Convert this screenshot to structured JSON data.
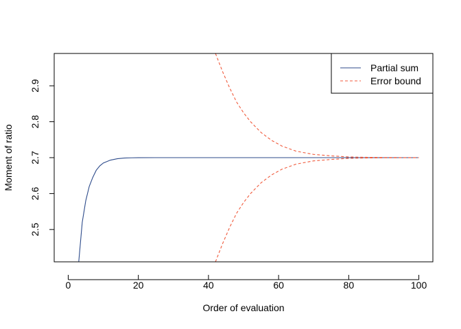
{
  "chart_data": {
    "type": "line",
    "title": "",
    "xlabel": "Order of evaluation",
    "ylabel": "Moment of ratio",
    "xlim": [
      -4,
      104
    ],
    "ylim": [
      2.41,
      2.99
    ],
    "x_ticks": [
      0,
      20,
      40,
      60,
      80,
      100
    ],
    "y_ticks": [
      2.5,
      2.6,
      2.7,
      2.8,
      2.9
    ],
    "x_tick_labels": [
      "0",
      "20",
      "40",
      "60",
      "80",
      "100"
    ],
    "y_tick_labels": [
      "2.5",
      "2.6",
      "2.7",
      "2.8",
      "2.9"
    ],
    "grid": false,
    "legend_position": "top-right",
    "series": [
      {
        "name": "Partial sum",
        "color": "#2c4a8a",
        "dash": "solid",
        "x": [
          3,
          4,
          5,
          6,
          7,
          8,
          9,
          10,
          12,
          14,
          16,
          18,
          20,
          25,
          30,
          40,
          60,
          80,
          100
        ],
        "y": [
          2.41,
          2.52,
          2.58,
          2.62,
          2.645,
          2.665,
          2.677,
          2.685,
          2.693,
          2.697,
          2.699,
          2.6995,
          2.6998,
          2.7,
          2.7,
          2.7,
          2.7,
          2.7,
          2.7
        ]
      },
      {
        "name": "Error bound",
        "color": "#f05a3c",
        "dash": "dashed",
        "segments": [
          {
            "x": [
              42,
              44,
              46,
              48,
              50,
              52,
              55,
              58,
              61,
              65,
              70,
              75,
              80,
              85,
              90,
              95,
              100
            ],
            "y": [
              2.99,
              2.94,
              2.895,
              2.855,
              2.825,
              2.8,
              2.77,
              2.748,
              2.732,
              2.718,
              2.709,
              2.705,
              2.702,
              2.701,
              2.7005,
              2.7002,
              2.7
            ]
          },
          {
            "x": [
              42,
              44,
              46,
              48,
              50,
              52,
              55,
              58,
              61,
              65,
              70,
              75,
              80,
              85,
              90,
              95,
              100
            ],
            "y": [
              2.41,
              2.46,
              2.505,
              2.545,
              2.575,
              2.6,
              2.63,
              2.652,
              2.668,
              2.682,
              2.691,
              2.695,
              2.698,
              2.699,
              2.6995,
              2.6998,
              2.7
            ]
          }
        ]
      }
    ]
  }
}
